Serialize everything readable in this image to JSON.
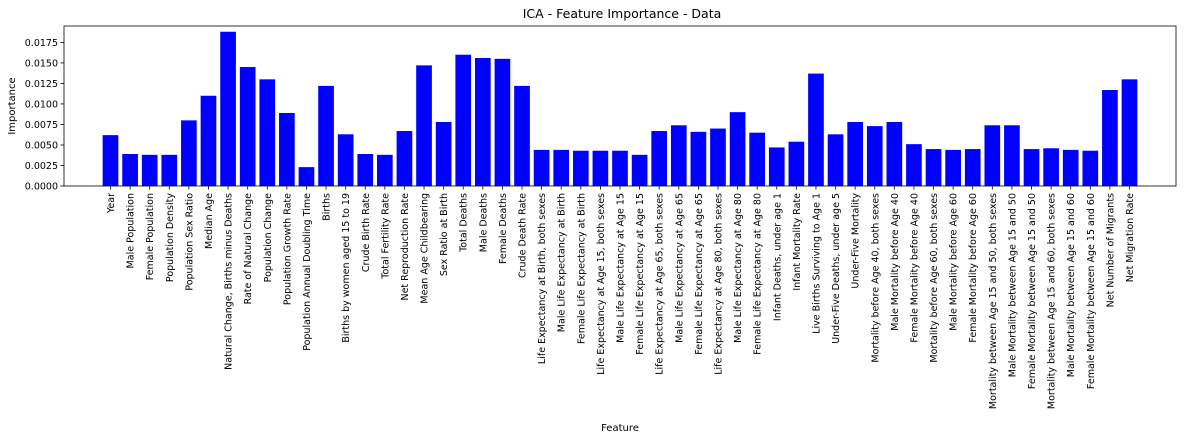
{
  "chart_data": {
    "type": "bar",
    "title": "ICA - Feature Importance - Data",
    "xlabel": "Feature",
    "ylabel": "Importance",
    "ylim": [
      0,
      0.0195
    ],
    "yticks": [
      "0.0000",
      "0.0025",
      "0.0050",
      "0.0075",
      "0.0100",
      "0.0125",
      "0.0150",
      "0.0175"
    ],
    "bar_color": "#0000ff",
    "grid": false,
    "categories": [
      "Year",
      "Male Population",
      "Female Population",
      "Population Density",
      "Population Sex Ratio",
      "Median Age",
      "Natural Change, Births minus Deaths",
      "Rate of Natural Change",
      "Population Change",
      "Population Growth Rate",
      "Population Annual Doubling Time",
      "Births",
      "Births by women aged 15 to 19",
      "Crude Birth Rate",
      "Total Fertility Rate",
      "Net Reproduction Rate",
      "Mean Age Childbearing",
      "Sex Ratio at Birth",
      "Total Deaths",
      "Male Deaths",
      "Female Deaths",
      "Crude Death Rate",
      "Life Expectancy at Birth, both sexes",
      "Male Life Expectancy at Birth",
      "Female Life Expectancy at Birth",
      "Life Expectancy at Age 15, both sexes",
      "Male Life Expectancy at Age 15",
      "Female Life Expectancy at Age 15",
      "Life Expectancy at Age 65, both sexes",
      "Male Life Expectancy at Age 65",
      "Female Life Expectancy at Age 65",
      "Life Expectancy at Age 80, both sexes",
      "Male Life Expectancy at Age 80",
      "Female Life Expectancy at Age 80",
      "Infant Deaths, under age 1",
      "Infant Mortality Rate",
      "Live Births Surviving to Age 1",
      "Under-Five Deaths, under age 5",
      "Under-Five Mortality",
      "Mortality before Age 40, both sexes",
      "Male Mortality before Age 40",
      "Female Mortality before Age 40",
      "Mortality before Age 60, both sexes",
      "Male Mortality before Age 60",
      "Female Mortality before Age 60",
      "Mortality between Age 15 and 50, both sexes",
      "Male Mortality between Age 15 and 50",
      "Female Mortality between Age 15 and 50",
      "Mortality between Age 15 and 60, both sexes",
      "Male Mortality between Age 15 and 60",
      "Female Mortality between Age 15 and 60",
      "Net Number of Migrants",
      "Net Migration Rate"
    ],
    "values": [
      0.0062,
      0.0039,
      0.0038,
      0.0038,
      0.008,
      0.011,
      0.0188,
      0.0145,
      0.013,
      0.0089,
      0.0023,
      0.0122,
      0.0063,
      0.0039,
      0.0038,
      0.0067,
      0.0147,
      0.0078,
      0.016,
      0.0156,
      0.0155,
      0.0122,
      0.0044,
      0.0044,
      0.0043,
      0.0043,
      0.0043,
      0.0038,
      0.0067,
      0.0074,
      0.0066,
      0.007,
      0.009,
      0.0065,
      0.0047,
      0.0054,
      0.0137,
      0.0063,
      0.0078,
      0.0073,
      0.0078,
      0.0051,
      0.0045,
      0.0044,
      0.0045,
      0.0074,
      0.0074,
      0.0045,
      0.0046,
      0.0044,
      0.0043,
      0.0117,
      0.013
    ]
  }
}
